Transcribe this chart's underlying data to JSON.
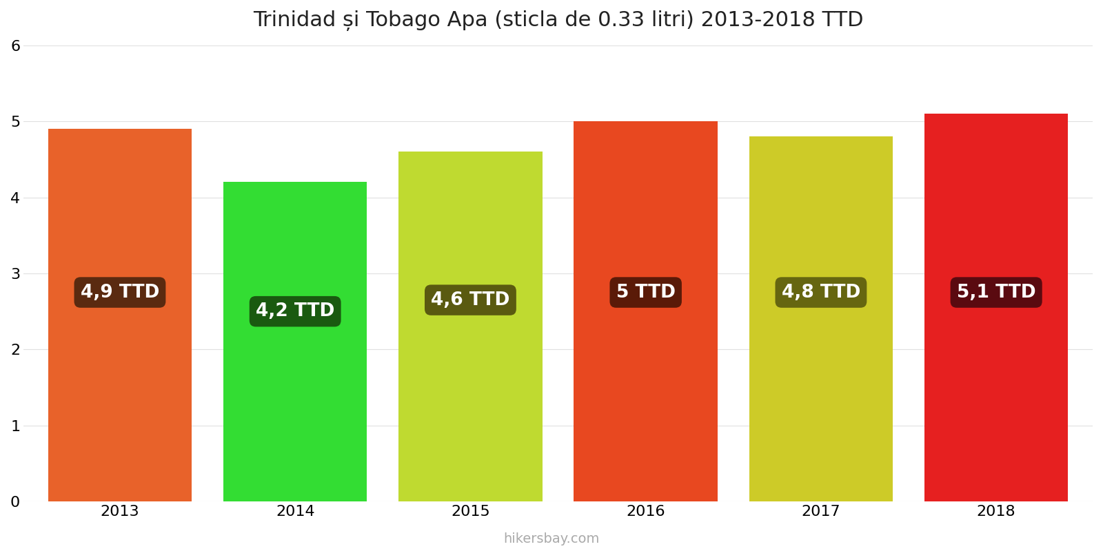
{
  "title": "Trinidad și Tobago Apa (sticla de 0.33 litri) 2013-2018 TTD",
  "years": [
    2013,
    2014,
    2015,
    2016,
    2017,
    2018
  ],
  "values": [
    4.9,
    4.2,
    4.6,
    5.0,
    4.8,
    5.1
  ],
  "bar_colors": [
    "#E8622A",
    "#33DD33",
    "#BFDA30",
    "#E84820",
    "#CDCB28",
    "#E62020"
  ],
  "label_texts": [
    "4,9 TTD",
    "4,2 TTD",
    "4,6 TTD",
    "5 TTD",
    "4,8 TTD",
    "5,1 TTD"
  ],
  "label_box_colors": [
    "#5A2A10",
    "#1A5A10",
    "#5A5A10",
    "#5A1A08",
    "#666610",
    "#5A0A10"
  ],
  "label_text_color": "#FFFFFF",
  "label_y_positions": [
    2.75,
    2.5,
    2.65,
    2.75,
    2.75,
    2.75
  ],
  "ylim": [
    0,
    6
  ],
  "yticks": [
    0,
    1,
    2,
    3,
    4,
    5,
    6
  ],
  "background_color": "#FFFFFF",
  "footer_text": "hikersbay.com",
  "title_fontsize": 22,
  "tick_fontsize": 16,
  "label_fontsize": 19,
  "footer_fontsize": 14,
  "bar_width": 0.82
}
